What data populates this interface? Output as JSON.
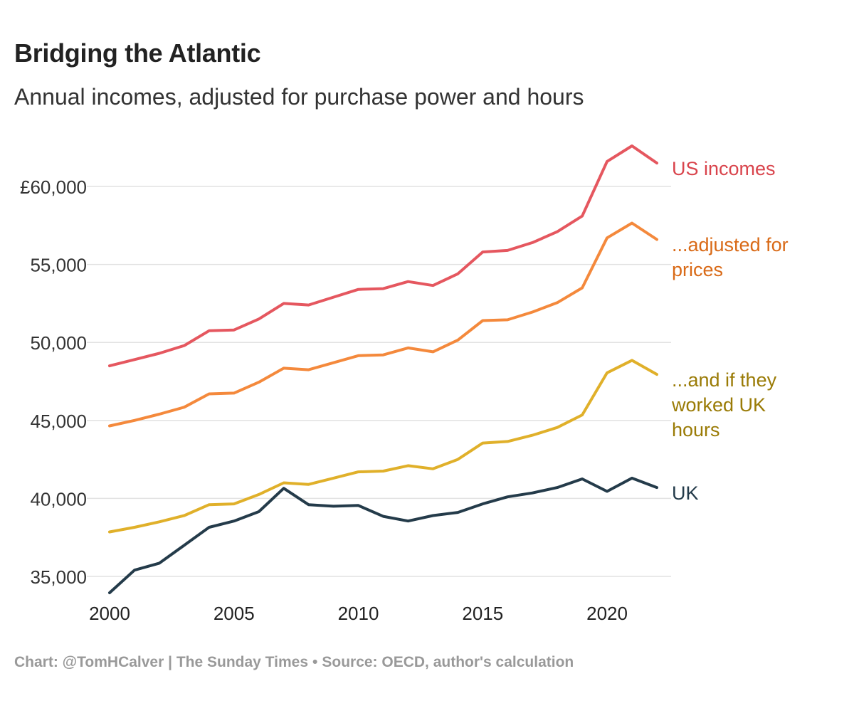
{
  "chart_data": {
    "type": "line",
    "title": "Bridging the Atlantic",
    "subtitle": "Annual incomes, adjusted for purchase power and hours",
    "xlabel": "",
    "ylabel": "",
    "xlim": [
      2000,
      2022
    ],
    "ylim": [
      34000,
      63000
    ],
    "grid": true,
    "x": [
      2000,
      2001,
      2002,
      2003,
      2004,
      2005,
      2006,
      2007,
      2008,
      2009,
      2010,
      2011,
      2012,
      2013,
      2014,
      2015,
      2016,
      2017,
      2018,
      2019,
      2020,
      2021,
      2022
    ],
    "x_ticks": [
      2000,
      2005,
      2010,
      2015,
      2020
    ],
    "x_tick_labels": [
      "2000",
      "2005",
      "2010",
      "2015",
      "2020"
    ],
    "y_ticks": [
      35000,
      40000,
      45000,
      50000,
      55000,
      60000
    ],
    "y_tick_labels": [
      "35,000",
      "40,000",
      "45,000",
      "50,000",
      "55,000",
      "£60,000"
    ],
    "series": [
      {
        "name": "US incomes",
        "label_lines": [
          "US incomes"
        ],
        "color": "#e5575f",
        "label_color": "#d9444c",
        "values": [
          48500,
          48900,
          49300,
          49800,
          50750,
          50800,
          51500,
          52500,
          52400,
          52900,
          53400,
          53450,
          53900,
          53650,
          54400,
          55800,
          55900,
          56400,
          57100,
          58100,
          61600,
          62600,
          61500
        ]
      },
      {
        "name": "...adjusted for prices",
        "label_lines": [
          "...adjusted for",
          "prices"
        ],
        "color": "#f4893c",
        "label_color": "#d96a17",
        "values": [
          44650,
          45000,
          45400,
          45850,
          46700,
          46750,
          47450,
          48350,
          48250,
          48700,
          49150,
          49200,
          49650,
          49400,
          50150,
          51400,
          51450,
          51950,
          52550,
          53500,
          56700,
          57650,
          56600
        ]
      },
      {
        "name": "...and if they worked UK hours",
        "label_lines": [
          "...and if they",
          "worked UK",
          "hours"
        ],
        "color": "#e0b02a",
        "label_color": "#9a7b06",
        "values": [
          37850,
          38150,
          38500,
          38900,
          39600,
          39650,
          40250,
          41000,
          40900,
          41300,
          41700,
          41750,
          42100,
          41900,
          42500,
          43550,
          43650,
          44050,
          44550,
          45350,
          48050,
          48850,
          47950
        ]
      },
      {
        "name": "UK",
        "label_lines": [
          "UK"
        ],
        "color": "#243b4a",
        "label_color": "#243b4a",
        "values": [
          33950,
          35400,
          35850,
          37000,
          38150,
          38550,
          39150,
          40650,
          39600,
          39500,
          39550,
          38850,
          38550,
          38900,
          39100,
          39650,
          40100,
          40350,
          40700,
          41250,
          40450,
          41300,
          40700
        ]
      }
    ]
  },
  "footer": {
    "credit": "Chart: @TomHCalver | The Sunday Times",
    "separator": "•",
    "source": "Source: OECD, author's calculation"
  }
}
